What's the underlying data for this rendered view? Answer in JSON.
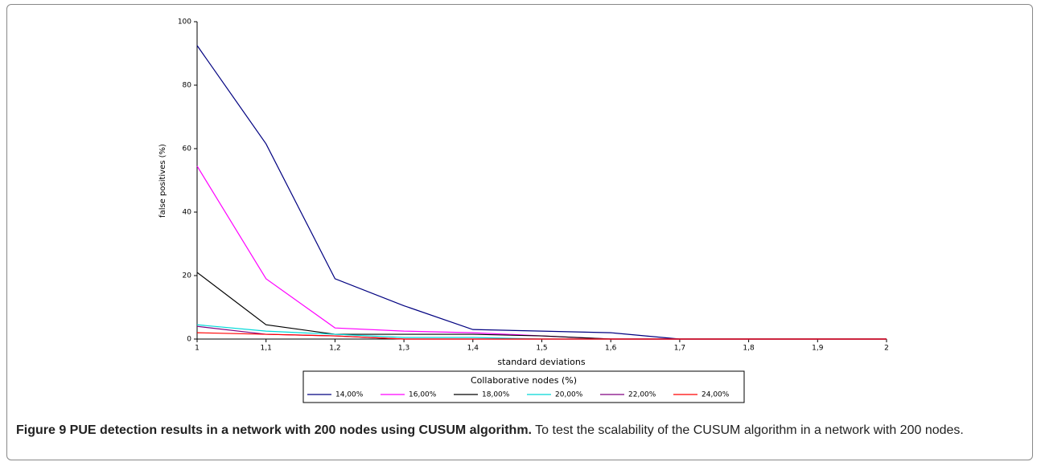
{
  "chart_data": {
    "type": "line",
    "xlabel": "standard deviations",
    "ylabel": "false positives (%)",
    "x": [
      1,
      1.1,
      1.2,
      1.3,
      1.4,
      1.5,
      1.6,
      1.7,
      1.8,
      1.9,
      2
    ],
    "xlim": [
      1,
      2
    ],
    "xticks": [
      1,
      {
        "value": 1.1,
        "label": "1,1"
      },
      {
        "value": 1.2,
        "label": "1,2"
      },
      {
        "value": 1.3,
        "label": "1,3"
      },
      {
        "value": 1.4,
        "label": "1,4"
      },
      {
        "value": 1.5,
        "label": "1,5"
      },
      {
        "value": 1.6,
        "label": "1,6"
      },
      {
        "value": 1.7,
        "label": "1,7"
      },
      {
        "value": 1.8,
        "label": "1,8"
      },
      {
        "value": 1.9,
        "label": "1,9"
      },
      2
    ],
    "ylim": [
      0,
      100
    ],
    "yticks": [
      0,
      20,
      40,
      60,
      80,
      100
    ],
    "legend": "bottom",
    "legend_title": "Collaborative nodes (%)",
    "series": [
      {
        "name": "14,00%",
        "color": "#000080",
        "values": [
          92.5,
          61.5,
          19,
          10.5,
          3,
          2.5,
          2,
          0,
          0,
          0,
          0
        ]
      },
      {
        "name": "16,00%",
        "color": "#ff00ff",
        "values": [
          54.5,
          19,
          3.5,
          2.5,
          2,
          1,
          0,
          0,
          0,
          0,
          0
        ]
      },
      {
        "name": "18,00%",
        "color": "#000000",
        "values": [
          21,
          4.5,
          1.5,
          1.5,
          1.5,
          1,
          0,
          0,
          0,
          0,
          0
        ]
      },
      {
        "name": "20,00%",
        "color": "#00d8d8",
        "values": [
          4.5,
          2.5,
          1.5,
          0.5,
          0.5,
          0,
          0,
          0,
          0,
          0,
          0
        ]
      },
      {
        "name": "22,00%",
        "color": "#800080",
        "values": [
          4,
          1.5,
          1,
          0,
          0,
          0,
          0,
          0,
          0,
          0,
          0
        ]
      },
      {
        "name": "24,00%",
        "color": "#ff0000",
        "values": [
          2,
          1.5,
          1,
          0,
          0,
          0,
          0,
          0,
          0,
          0,
          0
        ]
      }
    ]
  },
  "caption": {
    "bold": "Figure 9 PUE detection results in a network with 200 nodes using CUSUM algorithm.",
    "text": "To test the scalability of the CUSUM algorithm in a network with 200 nodes."
  }
}
